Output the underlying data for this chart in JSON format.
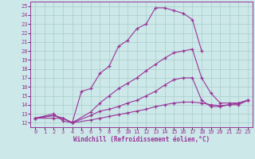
{
  "xlabel": "Windchill (Refroidissement éolien,°C)",
  "xlim": [
    -0.5,
    23.5
  ],
  "ylim": [
    11.5,
    25.5
  ],
  "xticks": [
    0,
    1,
    2,
    3,
    4,
    5,
    6,
    7,
    8,
    9,
    10,
    11,
    12,
    13,
    14,
    15,
    16,
    17,
    18,
    19,
    20,
    21,
    22,
    23
  ],
  "yticks": [
    12,
    13,
    14,
    15,
    16,
    17,
    18,
    19,
    20,
    21,
    22,
    23,
    24,
    25
  ],
  "background_color": "#cce8e8",
  "line_color": "#993399",
  "grid_color": "#aacccc",
  "line1_x": [
    0,
    2,
    3,
    4,
    5,
    6,
    7,
    8,
    9,
    10,
    11,
    12,
    13,
    14,
    15,
    16,
    17,
    18
  ],
  "line1_y": [
    12.5,
    13.0,
    12.2,
    12.0,
    15.5,
    15.8,
    17.5,
    18.3,
    20.5,
    21.2,
    22.5,
    23.0,
    24.8,
    24.8,
    24.5,
    24.2,
    23.5,
    20.0
  ],
  "line2_x": [
    0,
    2,
    3,
    4,
    6,
    7,
    8,
    9,
    10,
    11,
    12,
    13,
    14,
    15,
    16,
    17,
    18,
    19,
    20,
    21,
    22,
    23
  ],
  "line2_y": [
    12.5,
    12.8,
    12.5,
    12.0,
    13.2,
    14.2,
    15.0,
    15.8,
    16.4,
    17.0,
    17.8,
    18.5,
    19.2,
    19.8,
    20.0,
    20.2,
    17.0,
    15.3,
    14.2,
    14.2,
    14.2,
    14.5
  ],
  "line3_x": [
    0,
    2,
    3,
    4,
    6,
    7,
    8,
    9,
    10,
    11,
    12,
    13,
    14,
    15,
    16,
    17,
    18,
    19,
    20,
    21,
    22,
    23
  ],
  "line3_y": [
    12.5,
    12.8,
    12.5,
    12.0,
    12.8,
    13.3,
    13.5,
    13.8,
    14.2,
    14.5,
    15.0,
    15.5,
    16.2,
    16.8,
    17.0,
    17.0,
    14.5,
    13.8,
    13.8,
    14.0,
    14.0,
    14.5
  ],
  "line4_x": [
    0,
    2,
    3,
    4,
    6,
    7,
    8,
    9,
    10,
    11,
    12,
    13,
    14,
    15,
    16,
    17,
    18,
    19,
    20,
    21,
    22,
    23
  ],
  "line4_y": [
    12.5,
    12.5,
    12.5,
    12.0,
    12.3,
    12.5,
    12.7,
    12.9,
    13.1,
    13.3,
    13.5,
    13.8,
    14.0,
    14.2,
    14.3,
    14.3,
    14.2,
    14.0,
    13.9,
    14.0,
    14.2,
    14.5
  ]
}
